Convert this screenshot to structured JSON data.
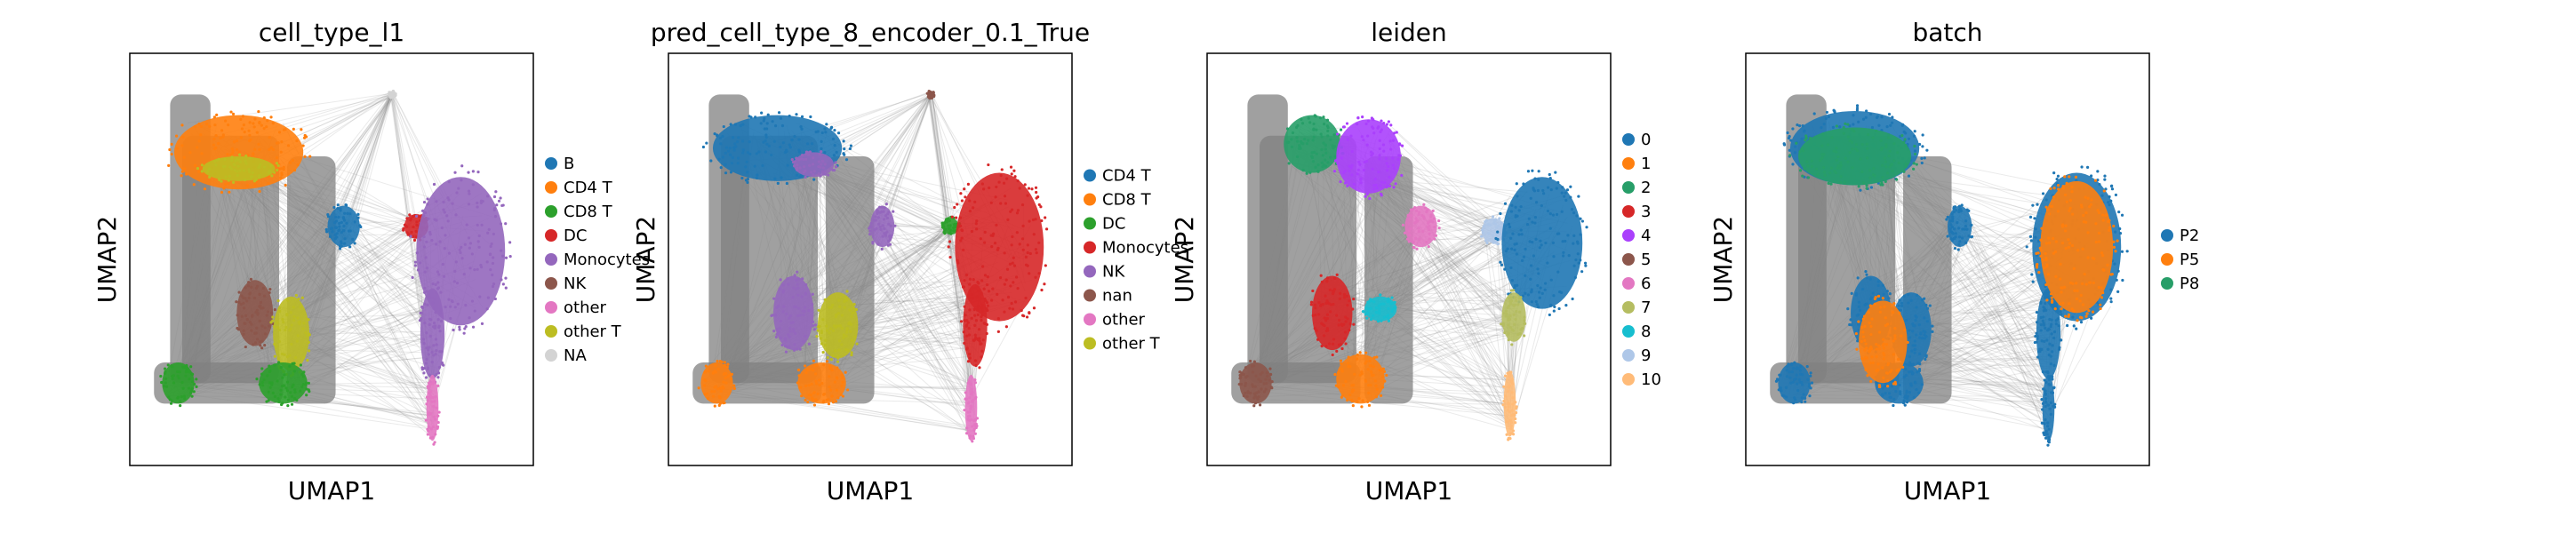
{
  "chart_data": [
    {
      "type": "scatter",
      "title": "cell_type_l1",
      "xlabel": "UMAP1",
      "ylabel": "UMAP2",
      "legend_position": "right",
      "grid": false,
      "series": [
        {
          "name": "B",
          "color": "#1f77b4"
        },
        {
          "name": "CD4 T",
          "color": "#ff7f0e"
        },
        {
          "name": "CD8 T",
          "color": "#2ca02c"
        },
        {
          "name": "DC",
          "color": "#d62728"
        },
        {
          "name": "Monocytes",
          "color": "#9467bd"
        },
        {
          "name": "NK",
          "color": "#8c564b"
        },
        {
          "name": "other",
          "color": "#e377c2"
        },
        {
          "name": "other T",
          "color": "#bcbd22"
        },
        {
          "name": "NA",
          "color": "#d3d3d3"
        }
      ],
      "clusters": [
        {
          "series": 1,
          "cx": 0.27,
          "cy": 0.24,
          "rx": 0.16,
          "ry": 0.09
        },
        {
          "series": 7,
          "cx": 0.27,
          "cy": 0.28,
          "rx": 0.09,
          "ry": 0.03
        },
        {
          "series": 0,
          "cx": 0.53,
          "cy": 0.42,
          "rx": 0.04,
          "ry": 0.05
        },
        {
          "series": 3,
          "cx": 0.71,
          "cy": 0.42,
          "rx": 0.03,
          "ry": 0.03
        },
        {
          "series": 4,
          "cx": 0.82,
          "cy": 0.48,
          "rx": 0.11,
          "ry": 0.18
        },
        {
          "series": 4,
          "cx": 0.75,
          "cy": 0.68,
          "rx": 0.03,
          "ry": 0.11
        },
        {
          "series": 6,
          "cx": 0.75,
          "cy": 0.86,
          "rx": 0.015,
          "ry": 0.08
        },
        {
          "series": 5,
          "cx": 0.31,
          "cy": 0.63,
          "rx": 0.045,
          "ry": 0.08
        },
        {
          "series": 7,
          "cx": 0.4,
          "cy": 0.68,
          "rx": 0.045,
          "ry": 0.09
        },
        {
          "series": 2,
          "cx": 0.38,
          "cy": 0.8,
          "rx": 0.06,
          "ry": 0.05
        },
        {
          "series": 2,
          "cx": 0.12,
          "cy": 0.8,
          "rx": 0.04,
          "ry": 0.05
        },
        {
          "series": 8,
          "cx": 0.65,
          "cy": 0.1,
          "rx": 0.008,
          "ry": 0.008
        }
      ]
    },
    {
      "type": "scatter",
      "title": "pred_cell_type_8_encoder_0.1_True",
      "xlabel": "UMAP1",
      "ylabel": "UMAP2",
      "legend_position": "right",
      "grid": false,
      "series": [
        {
          "name": "CD4 T",
          "color": "#1f77b4"
        },
        {
          "name": "CD8 T",
          "color": "#ff7f0e"
        },
        {
          "name": "DC",
          "color": "#2ca02c"
        },
        {
          "name": "Monocytes",
          "color": "#d62728"
        },
        {
          "name": "NK",
          "color": "#9467bd"
        },
        {
          "name": "nan",
          "color": "#8c564b"
        },
        {
          "name": "other",
          "color": "#e377c2"
        },
        {
          "name": "other T",
          "color": "#bcbd22"
        }
      ],
      "clusters": [
        {
          "series": 0,
          "cx": 0.27,
          "cy": 0.23,
          "rx": 0.16,
          "ry": 0.08
        },
        {
          "series": 4,
          "cx": 0.36,
          "cy": 0.27,
          "rx": 0.05,
          "ry": 0.03
        },
        {
          "series": 4,
          "cx": 0.53,
          "cy": 0.42,
          "rx": 0.03,
          "ry": 0.05
        },
        {
          "series": 2,
          "cx": 0.7,
          "cy": 0.42,
          "rx": 0.02,
          "ry": 0.02
        },
        {
          "series": 3,
          "cx": 0.82,
          "cy": 0.47,
          "rx": 0.11,
          "ry": 0.18
        },
        {
          "series": 3,
          "cx": 0.76,
          "cy": 0.66,
          "rx": 0.03,
          "ry": 0.1
        },
        {
          "series": 6,
          "cx": 0.75,
          "cy": 0.86,
          "rx": 0.015,
          "ry": 0.08
        },
        {
          "series": 4,
          "cx": 0.31,
          "cy": 0.63,
          "rx": 0.05,
          "ry": 0.09
        },
        {
          "series": 7,
          "cx": 0.42,
          "cy": 0.66,
          "rx": 0.05,
          "ry": 0.08
        },
        {
          "series": 1,
          "cx": 0.38,
          "cy": 0.8,
          "rx": 0.06,
          "ry": 0.05
        },
        {
          "series": 1,
          "cx": 0.12,
          "cy": 0.8,
          "rx": 0.04,
          "ry": 0.05
        },
        {
          "series": 5,
          "cx": 0.65,
          "cy": 0.1,
          "rx": 0.008,
          "ry": 0.008
        }
      ]
    },
    {
      "type": "scatter",
      "title": "leiden",
      "xlabel": "UMAP1",
      "ylabel": "UMAP2",
      "legend_position": "right",
      "grid": false,
      "series": [
        {
          "name": "0",
          "color": "#1f77b4"
        },
        {
          "name": "1",
          "color": "#ff7f0e"
        },
        {
          "name": "2",
          "color": "#279e68"
        },
        {
          "name": "3",
          "color": "#d62728"
        },
        {
          "name": "4",
          "color": "#aa40fc"
        },
        {
          "name": "5",
          "color": "#8c564b"
        },
        {
          "name": "6",
          "color": "#e377c2"
        },
        {
          "name": "7",
          "color": "#b5bd61"
        },
        {
          "name": "8",
          "color": "#17becf"
        },
        {
          "name": "9",
          "color": "#aec7e8"
        },
        {
          "name": "10",
          "color": "#ffbb78"
        }
      ],
      "clusters": [
        {
          "series": 2,
          "cx": 0.26,
          "cy": 0.22,
          "rx": 0.07,
          "ry": 0.07
        },
        {
          "series": 4,
          "cx": 0.4,
          "cy": 0.25,
          "rx": 0.08,
          "ry": 0.09
        },
        {
          "series": 6,
          "cx": 0.53,
          "cy": 0.42,
          "rx": 0.04,
          "ry": 0.05
        },
        {
          "series": 9,
          "cx": 0.71,
          "cy": 0.43,
          "rx": 0.03,
          "ry": 0.03
        },
        {
          "series": 0,
          "cx": 0.83,
          "cy": 0.46,
          "rx": 0.1,
          "ry": 0.16
        },
        {
          "series": 7,
          "cx": 0.76,
          "cy": 0.64,
          "rx": 0.03,
          "ry": 0.06
        },
        {
          "series": 10,
          "cx": 0.75,
          "cy": 0.85,
          "rx": 0.015,
          "ry": 0.08
        },
        {
          "series": 3,
          "cx": 0.31,
          "cy": 0.63,
          "rx": 0.05,
          "ry": 0.09
        },
        {
          "series": 8,
          "cx": 0.43,
          "cy": 0.62,
          "rx": 0.04,
          "ry": 0.03
        },
        {
          "series": 1,
          "cx": 0.38,
          "cy": 0.79,
          "rx": 0.06,
          "ry": 0.06
        },
        {
          "series": 5,
          "cx": 0.12,
          "cy": 0.8,
          "rx": 0.04,
          "ry": 0.05
        }
      ]
    },
    {
      "type": "scatter",
      "title": "batch",
      "xlabel": "UMAP1",
      "ylabel": "UMAP2",
      "legend_position": "right",
      "grid": false,
      "series": [
        {
          "name": "P2",
          "color": "#1f77b4"
        },
        {
          "name": "P5",
          "color": "#ff7f0e"
        },
        {
          "name": "P8",
          "color": "#279e68"
        }
      ],
      "clusters": [
        {
          "series": 0,
          "cx": 0.27,
          "cy": 0.23,
          "rx": 0.16,
          "ry": 0.09
        },
        {
          "series": 0,
          "cx": 0.53,
          "cy": 0.42,
          "rx": 0.03,
          "ry": 0.05
        },
        {
          "series": 0,
          "cx": 0.82,
          "cy": 0.47,
          "rx": 0.11,
          "ry": 0.18
        },
        {
          "series": 0,
          "cx": 0.75,
          "cy": 0.68,
          "rx": 0.03,
          "ry": 0.11
        },
        {
          "series": 0,
          "cx": 0.75,
          "cy": 0.86,
          "rx": 0.015,
          "ry": 0.08
        },
        {
          "series": 0,
          "cx": 0.31,
          "cy": 0.63,
          "rx": 0.05,
          "ry": 0.09
        },
        {
          "series": 0,
          "cx": 0.41,
          "cy": 0.67,
          "rx": 0.05,
          "ry": 0.09
        },
        {
          "series": 0,
          "cx": 0.38,
          "cy": 0.8,
          "rx": 0.06,
          "ry": 0.05
        },
        {
          "series": 0,
          "cx": 0.12,
          "cy": 0.8,
          "rx": 0.04,
          "ry": 0.05
        },
        {
          "series": 1,
          "cx": 0.82,
          "cy": 0.47,
          "rx": 0.09,
          "ry": 0.16
        },
        {
          "series": 1,
          "cx": 0.34,
          "cy": 0.7,
          "rx": 0.06,
          "ry": 0.1
        },
        {
          "series": 2,
          "cx": 0.27,
          "cy": 0.25,
          "rx": 0.14,
          "ry": 0.07
        }
      ]
    }
  ]
}
